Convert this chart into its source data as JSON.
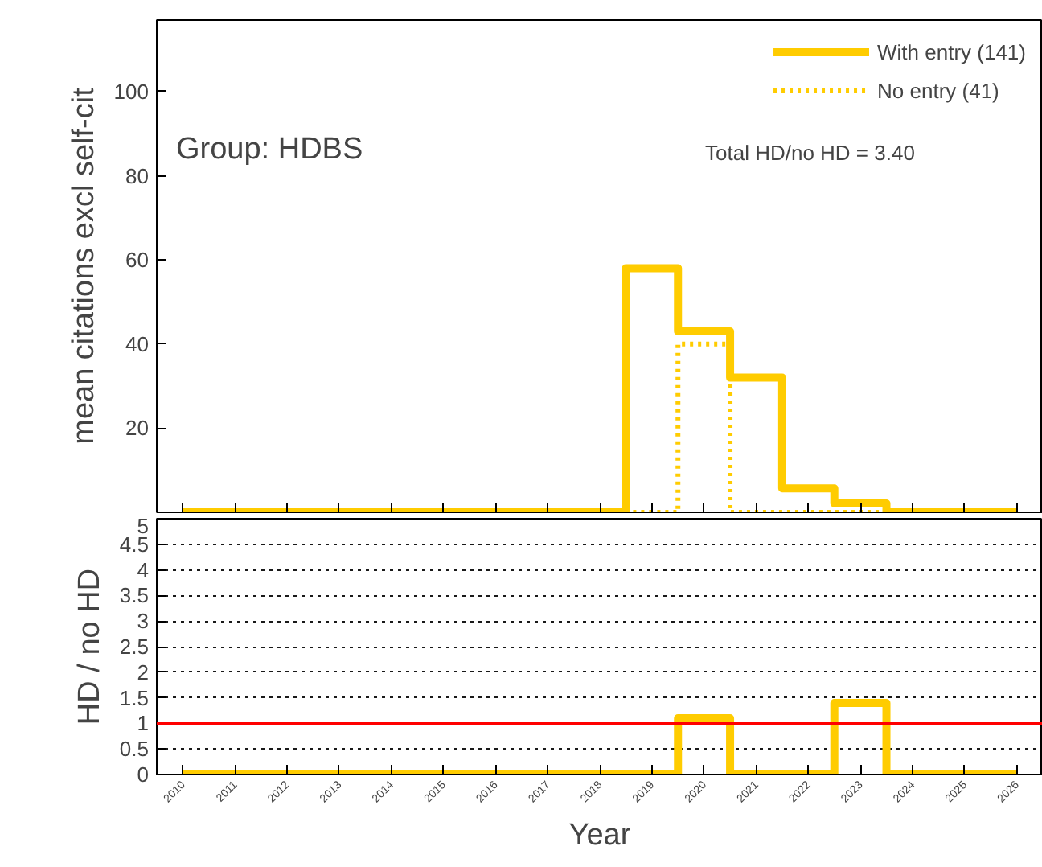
{
  "chart_data": [
    {
      "type": "step",
      "ylabel": "mean citations excl self-cit",
      "x": [
        2010.5,
        2011.5,
        2012.5,
        2013.5,
        2014.5,
        2015.5,
        2016.5,
        2017.5,
        2018.5,
        2019.5,
        2020.5,
        2021.5,
        2022.5,
        2023.5,
        2024.5,
        2025.5,
        2026.5
      ],
      "series": [
        {
          "name": "With entry (141)",
          "color": "#ffcc00",
          "line_style": "solid",
          "values": [
            0,
            0,
            0,
            0,
            0,
            0,
            0,
            0,
            0,
            58,
            43,
            32,
            5.7,
            2.1,
            0,
            0,
            0
          ]
        },
        {
          "name": "No entry (41)",
          "color": "#ffcc00",
          "line_style": "dotted",
          "values": [
            0,
            0,
            0,
            0,
            0,
            0,
            0,
            0,
            0,
            0,
            40,
            0,
            0,
            0,
            0,
            0,
            0
          ]
        }
      ],
      "xlim": [
        2010,
        2027
      ],
      "ylim": [
        0,
        117
      ],
      "yticks": [
        20,
        40,
        60,
        80,
        100
      ],
      "xticks": [
        {
          "value": 2010.5,
          "label": null
        },
        {
          "value": 2011.5,
          "label": null
        },
        {
          "value": 2012.5,
          "label": null
        },
        {
          "value": 2013.5,
          "label": null
        },
        {
          "value": 2014.5,
          "label": null
        },
        {
          "value": 2015.5,
          "label": null
        },
        {
          "value": 2016.5,
          "label": null
        },
        {
          "value": 2017.5,
          "label": null
        },
        {
          "value": 2018.5,
          "label": null
        },
        {
          "value": 2019.5,
          "label": null
        },
        {
          "value": 2020.5,
          "label": null
        },
        {
          "value": 2021.5,
          "label": null
        },
        {
          "value": 2022.5,
          "label": null
        },
        {
          "value": 2023.5,
          "label": null
        },
        {
          "value": 2024.5,
          "label": null
        },
        {
          "value": 2025.5,
          "label": null
        },
        {
          "value": 2026.5,
          "label": null
        }
      ],
      "tick_labels": "y",
      "legend": "top right",
      "grid": false,
      "annotations": [
        "Group: HDBS",
        "Total HD/no HD =  3.40"
      ]
    },
    {
      "type": "step",
      "ylabel": "HD / no HD",
      "xlabel": "Year",
      "x": [
        2010.5,
        2011.5,
        2012.5,
        2013.5,
        2014.5,
        2015.5,
        2016.5,
        2017.5,
        2018.5,
        2019.5,
        2020.5,
        2021.5,
        2022.5,
        2023.5,
        2024.5,
        2025.5,
        2026.5
      ],
      "series": [
        {
          "color": "#ffcc00",
          "line_style": "solid",
          "values": [
            0,
            0,
            0,
            0,
            0,
            0,
            0,
            0,
            0,
            0,
            1.1,
            0,
            0,
            1.4,
            0,
            0,
            0
          ]
        }
      ],
      "xlim": [
        2010,
        2027
      ],
      "ylim": [
        0,
        5
      ],
      "yticks": [
        0,
        {
          "value": 0.5,
          "label": "0.5"
        },
        1,
        {
          "value": 1.5,
          "label": "1.5"
        },
        2,
        {
          "value": 2.5,
          "label": "2.5"
        },
        3,
        {
          "value": 3.5,
          "label": "3.5"
        },
        4,
        {
          "value": 4.5,
          "label": "4.5"
        },
        5
      ],
      "xticks": [
        {
          "value": 2010.5,
          "label": "2010"
        },
        {
          "value": 2011.5,
          "label": "2011"
        },
        {
          "value": 2012.5,
          "label": "2012"
        },
        {
          "value": 2013.5,
          "label": "2013"
        },
        {
          "value": 2014.5,
          "label": "2014"
        },
        {
          "value": 2015.5,
          "label": "2015"
        },
        {
          "value": 2016.5,
          "label": "2016"
        },
        {
          "value": 2017.5,
          "label": "2017"
        },
        {
          "value": 2018.5,
          "label": "2018"
        },
        {
          "value": 2019.5,
          "label": "2019"
        },
        {
          "value": 2020.5,
          "label": "2020"
        },
        {
          "value": 2021.5,
          "label": "2021"
        },
        {
          "value": 2022.5,
          "label": "2022"
        },
        {
          "value": 2023.5,
          "label": "2023"
        },
        {
          "value": 2024.5,
          "label": "2024"
        },
        {
          "value": 2025.5,
          "label": "2025"
        },
        {
          "value": 2026.5,
          "label": "2026"
        }
      ],
      "grid": "y",
      "ref_lines": [
        {
          "axis": "y",
          "value": 1,
          "color": "#ff0000",
          "line_style": "solid"
        }
      ]
    }
  ]
}
